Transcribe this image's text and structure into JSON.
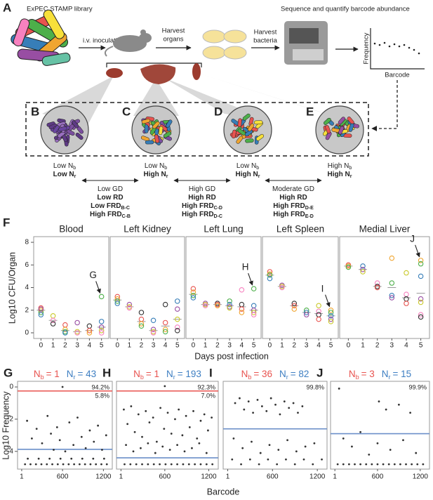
{
  "panel_a": {
    "label": "A",
    "library": "ExPEC STAMP library",
    "inoculation": "i.v. inoculation",
    "harvest_organs": [
      "Harvest",
      "organs"
    ],
    "harvest_bacteria": [
      "Harvest",
      "bacteria"
    ],
    "sequence": "Sequence and quantify barcode abundance",
    "frequency": "Frequency",
    "barcode": "Barcode"
  },
  "panels_be": {
    "circles": [
      {
        "label": "B",
        "lines": [
          [
            "Low N",
            "b"
          ],
          [
            "Low N",
            "r"
          ]
        ]
      },
      {
        "label": "C",
        "lines": [
          [
            "Low N",
            "b"
          ],
          [
            "High N",
            "r"
          ]
        ]
      },
      {
        "label": "D",
        "lines": [
          [
            "Low N",
            "b"
          ],
          [
            "High N",
            "r"
          ]
        ]
      },
      {
        "label": "E",
        "lines": [
          [
            "High N",
            "b"
          ],
          [
            "High N",
            "r"
          ]
        ]
      }
    ],
    "comparisons": [
      {
        "lines": [
          [
            "Low GD"
          ],
          [
            "Low RD"
          ],
          [
            "Low FRD",
            "B-C"
          ],
          [
            "High FRD",
            "C-B"
          ]
        ]
      },
      {
        "lines": [
          [
            "High GD"
          ],
          [
            "High RD"
          ],
          [
            "High FRD",
            "C-D"
          ],
          [
            "High FRD",
            "D-C"
          ]
        ]
      },
      {
        "lines": [
          [
            "Moderate GD"
          ],
          [
            "High RD"
          ],
          [
            "High FRD",
            "D-E"
          ],
          [
            "High FRD",
            "E-D"
          ]
        ]
      }
    ]
  },
  "panel_f": {
    "label": "F",
    "ylabel": "Log10 CFU/Organ",
    "xlabel": "Days post infection"
  },
  "panel_gj": {
    "ylabel": "Log10 Frequency",
    "xlabel": "Barcode"
  },
  "chart_data": [
    {
      "type": "scatter",
      "title": "Blood",
      "x": [
        0,
        0,
        0,
        0,
        0,
        1,
        1,
        1,
        2,
        2,
        2,
        2,
        3,
        3,
        3,
        4,
        4,
        4,
        5,
        5,
        5,
        5,
        5
      ],
      "y": [
        2.2,
        2.0,
        1.8,
        1.6,
        2.1,
        1.5,
        1.1,
        0.8,
        0.7,
        0.3,
        0.1,
        0,
        0.9,
        0.1,
        0,
        0.6,
        0.2,
        0,
        3.2,
        1.0,
        0.5,
        0.2,
        0
      ],
      "medians": [
        2.0,
        1.1,
        0.2,
        0.1,
        0.2,
        0.5
      ],
      "xlim": [
        -0.6,
        5.6
      ],
      "xticks": [
        0,
        1,
        2,
        3,
        4,
        5
      ],
      "ylim": [
        -0.5,
        8.5
      ],
      "yticks": [
        0,
        2,
        4,
        6,
        8
      ],
      "palette": [
        "#e8534f",
        "#f0a530",
        "#4daf4a",
        "#377eb8",
        "#984ea3",
        "#c9c92a",
        "#f781bf",
        "#333333"
      ],
      "annotation": "G"
    },
    {
      "type": "scatter",
      "title": "Left Kidney",
      "x": [
        0,
        0,
        0,
        0,
        1,
        1,
        1,
        2,
        2,
        2,
        2,
        3,
        3,
        3,
        3,
        4,
        4,
        4,
        4,
        5,
        5,
        5,
        5,
        5
      ],
      "y": [
        3.2,
        3.0,
        2.8,
        2.6,
        2.5,
        2.3,
        2.2,
        1.8,
        1.2,
        0.8,
        0.6,
        1.1,
        0.3,
        0.1,
        0,
        2.5,
        0.9,
        0.3,
        0.1,
        2.8,
        2.1,
        1.2,
        0.5,
        0.2
      ],
      "medians": [
        2.9,
        2.3,
        1.0,
        0.2,
        0.6,
        1.2
      ],
      "xlim": [
        -0.6,
        5.6
      ],
      "xticks": [
        0,
        1,
        2,
        3,
        4,
        5
      ],
      "ylim": [
        -0.5,
        8.5
      ],
      "palette": [
        "#e8534f",
        "#f0a530",
        "#4daf4a",
        "#377eb8",
        "#984ea3",
        "#c9c92a",
        "#f781bf",
        "#333333"
      ]
    },
    {
      "type": "scatter",
      "title": "Left Lung",
      "x": [
        0,
        0,
        0,
        0,
        1,
        1,
        1,
        2,
        2,
        2,
        3,
        3,
        3,
        3,
        4,
        4,
        4,
        4,
        5,
        5,
        5,
        5,
        5
      ],
      "y": [
        3.9,
        3.6,
        3.3,
        3.1,
        2.6,
        2.5,
        2.4,
        2.6,
        2.5,
        2.4,
        2.8,
        2.5,
        2.3,
        2.2,
        3.8,
        2.5,
        2.1,
        1.8,
        3.9,
        2.4,
        2.0,
        1.8,
        1.6
      ],
      "medians": [
        3.4,
        2.5,
        2.5,
        2.4,
        2.3,
        2.0
      ],
      "xlim": [
        -0.6,
        5.6
      ],
      "xticks": [
        0,
        1,
        2,
        3,
        4,
        5
      ],
      "ylim": [
        -0.5,
        8.5
      ],
      "palette": [
        "#e8534f",
        "#f0a530",
        "#4daf4a",
        "#377eb8",
        "#984ea3",
        "#c9c92a",
        "#f781bf",
        "#333333"
      ],
      "annotation": "H"
    },
    {
      "type": "scatter",
      "title": "Left Spleen",
      "x": [
        0,
        0,
        0,
        0,
        1,
        1,
        1,
        2,
        2,
        2,
        3,
        3,
        3,
        4,
        4,
        4,
        4,
        5,
        5,
        5,
        5,
        5
      ],
      "y": [
        5.4,
        5.2,
        5.1,
        4.8,
        4.2,
        4.1,
        4.0,
        2.6,
        2.4,
        2.1,
        2.0,
        1.8,
        1.6,
        2.4,
        1.9,
        1.6,
        1.2,
        2.0,
        1.8,
        1.5,
        1.2,
        1.0
      ],
      "medians": [
        5.1,
        4.1,
        2.4,
        1.8,
        1.7,
        1.5
      ],
      "xlim": [
        -0.6,
        5.6
      ],
      "xticks": [
        0,
        1,
        2,
        3,
        4,
        5
      ],
      "ylim": [
        -0.5,
        8.5
      ],
      "palette": [
        "#e8534f",
        "#f0a530",
        "#4daf4a",
        "#377eb8",
        "#984ea3",
        "#c9c92a",
        "#f781bf",
        "#333333"
      ],
      "annotation": "I"
    },
    {
      "type": "scatter",
      "title": "Medial Liver",
      "x": [
        0,
        0,
        0,
        1,
        1,
        1,
        2,
        2,
        2,
        3,
        3,
        3,
        3,
        4,
        4,
        4,
        4,
        5,
        5,
        5,
        5,
        5,
        5,
        5
      ],
      "y": [
        6.0,
        5.9,
        5.8,
        5.9,
        5.6,
        5.4,
        4.4,
        4.1,
        4.0,
        6.6,
        4.4,
        3.3,
        3.1,
        5.3,
        3.4,
        3.0,
        2.6,
        6.4,
        6.1,
        5.0,
        3.0,
        2.7,
        1.6,
        1.4
      ],
      "medians": [
        5.9,
        5.6,
        4.1,
        4.0,
        3.1,
        3.5
      ],
      "xlim": [
        -0.6,
        5.6
      ],
      "xticks": [
        0,
        1,
        2,
        3,
        4,
        5
      ],
      "ylim": [
        -0.5,
        8.5
      ],
      "palette": [
        "#e8534f",
        "#f0a530",
        "#4daf4a",
        "#377eb8",
        "#984ea3",
        "#c9c92a",
        "#f781bf",
        "#333333"
      ],
      "annotation": "J"
    },
    {
      "type": "dots",
      "label": "G",
      "title_b": [
        "N",
        "b",
        "= 1"
      ],
      "title_r": [
        "N",
        "r",
        "= 43"
      ],
      "x": [
        600,
        80,
        150,
        220,
        300,
        380,
        430,
        470,
        520,
        560,
        640,
        700,
        760,
        820,
        880,
        940,
        1000,
        1060,
        1120,
        1180,
        1240,
        50,
        130,
        210,
        290,
        370,
        450,
        530,
        610,
        690,
        770,
        850,
        930,
        1010,
        1090,
        1170,
        1250,
        90,
        250,
        410,
        570,
        730,
        890,
        1050,
        1210
      ],
      "y": [
        0.0,
        -2.1,
        -3.2,
        -2.6,
        -3.5,
        -1.8,
        -2.9,
        -3.9,
        -2.5,
        -3.3,
        -4.0,
        -2.2,
        -3.6,
        -1.9,
        -3.1,
        -3.8,
        -2.7,
        -3.4,
        -2.4,
        -3.9,
        -3.0,
        -4.8,
        -4.8,
        -4.8,
        -4.8,
        -4.8,
        -4.8,
        -4.8,
        -4.8,
        -4.8,
        -4.8,
        -4.8,
        -4.8,
        -4.8,
        -4.8,
        -4.8,
        -4.8,
        -4.45,
        -4.45,
        -4.45,
        -4.45,
        -4.45,
        -4.45,
        -4.45,
        -4.45
      ],
      "xlim": [
        -60,
        1330
      ],
      "xticks": [
        1,
        600,
        1200
      ],
      "ylim": [
        -5.1,
        0.35
      ],
      "yticks": [
        0,
        -2,
        -4
      ],
      "hlines": [
        {
          "value": -0.25,
          "color": "#e8534f",
          "label": "94.2%"
        },
        {
          "value": -3.87,
          "color": "#6b8fc9",
          "label": "5.8%"
        }
      ]
    },
    {
      "type": "dots",
      "label": "H",
      "title_b": [
        "N",
        "b",
        "= 1"
      ],
      "title_r": [
        "N",
        "r",
        "= 193"
      ],
      "x": [
        600,
        40,
        90,
        140,
        190,
        240,
        290,
        340,
        390,
        440,
        490,
        540,
        590,
        640,
        690,
        740,
        790,
        840,
        890,
        940,
        990,
        1040,
        1090,
        1140,
        1190,
        1240,
        70,
        170,
        270,
        370,
        470,
        570,
        670,
        770,
        870,
        970,
        1070,
        1170,
        50,
        130,
        210,
        290,
        370,
        450,
        530,
        610,
        690,
        770,
        850,
        930,
        1010,
        1090,
        1170,
        1250
      ],
      "y": [
        0.05,
        -1.4,
        -2.3,
        -1.2,
        -2.8,
        -1.7,
        -3.1,
        -1.5,
        -2.2,
        -1.9,
        -3.4,
        -1.3,
        -2.6,
        -1.6,
        -2.9,
        -2.0,
        -1.4,
        -3.0,
        -1.8,
        -2.5,
        -1.5,
        -3.2,
        -2.1,
        -1.7,
        -2.7,
        -1.9,
        -3.6,
        -4.0,
        -3.8,
        -3.5,
        -4.1,
        -3.7,
        -3.9,
        -3.6,
        -4.0,
        -3.8,
        -3.5,
        -4.1,
        -4.8,
        -4.8,
        -4.8,
        -4.8,
        -4.8,
        -4.8,
        -4.8,
        -4.8,
        -4.8,
        -4.8,
        -4.8,
        -4.8,
        -4.8,
        -4.8,
        -4.8,
        -4.8
      ],
      "xlim": [
        -60,
        1330
      ],
      "xticks": [
        1,
        600,
        1200
      ],
      "ylim": [
        -5.1,
        0.35
      ],
      "hlines": [
        {
          "value": -0.25,
          "color": "#e8534f",
          "label": "92.3%"
        },
        {
          "value": -4.4,
          "color": "#6b8fc9",
          "label": "7.0%"
        }
      ]
    },
    {
      "type": "dots",
      "label": "I",
      "title_b": [
        "N",
        "b",
        "= 36"
      ],
      "title_r": [
        "N",
        "r",
        "= 82"
      ],
      "x": [
        100,
        160,
        220,
        280,
        340,
        400,
        460,
        520,
        580,
        640,
        700,
        760,
        820,
        880,
        940,
        1000,
        80,
        200,
        320,
        440,
        560,
        680,
        800,
        920,
        1040,
        1160,
        60,
        180,
        300,
        420,
        540,
        660,
        780,
        900,
        1020,
        1140,
        1260
      ],
      "y": [
        -1.0,
        -0.7,
        -1.4,
        -0.9,
        -1.6,
        -0.8,
        -1.2,
        -1.5,
        -0.7,
        -1.1,
        -1.7,
        -0.9,
        -1.3,
        -1.0,
        -1.6,
        -1.2,
        -3.2,
        -3.8,
        -3.4,
        -4.1,
        -3.6,
        -3.9,
        -3.3,
        -4.0,
        -3.7,
        -3.5,
        -4.5,
        -4.8,
        -4.5,
        -4.8,
        -4.5,
        -4.8,
        -4.5,
        -4.8,
        -4.5,
        -4.8,
        -4.5
      ],
      "xlim": [
        -60,
        1330
      ],
      "xticks": [
        1,
        600,
        1200
      ],
      "ylim": [
        -5.1,
        0.35
      ],
      "hlines": [
        {
          "value": -2.6,
          "color": "#6b8fc9",
          "label": "99.8%"
        }
      ]
    },
    {
      "type": "dots",
      "label": "J",
      "title_b": [
        "N",
        "b",
        "= 3"
      ],
      "title_r": [
        "N",
        "r",
        "= 15"
      ],
      "x": [
        60,
        620,
        720,
        900,
        1060,
        120,
        240,
        360,
        480,
        600,
        780,
        960,
        1140,
        40,
        120,
        200,
        280,
        360,
        440,
        520,
        600,
        680,
        760,
        840,
        920,
        1000,
        1080,
        1160,
        1240
      ],
      "y": [
        -0.1,
        -0.9,
        -1.4,
        -1.1,
        -1.6,
        -3.2,
        -3.7,
        -2.8,
        -4.2,
        -3.5,
        -3.9,
        -3.3,
        -4.1,
        -4.8,
        -4.8,
        -4.8,
        -4.8,
        -4.8,
        -4.8,
        -4.8,
        -4.8,
        -4.8,
        -4.8,
        -4.8,
        -4.8,
        -4.8,
        -4.8,
        -4.8,
        -4.8
      ],
      "xlim": [
        -60,
        1330
      ],
      "xticks": [
        1,
        600,
        1200
      ],
      "ylim": [
        -5.1,
        0.35
      ],
      "hlines": [
        {
          "value": -2.9,
          "color": "#6b8fc9",
          "label": "99.9%"
        }
      ]
    }
  ]
}
